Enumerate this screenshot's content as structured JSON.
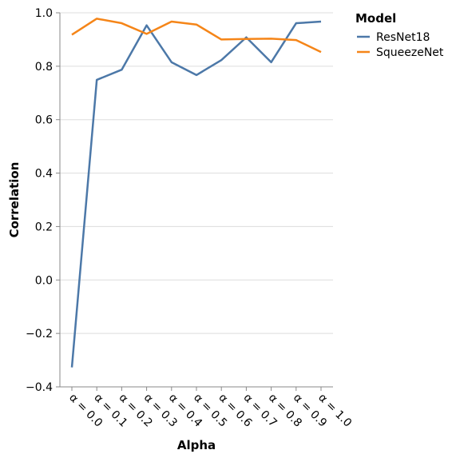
{
  "chart_data": {
    "type": "line",
    "xlabel": "Alpha",
    "ylabel": "Correlation",
    "categories": [
      "α = 0.0",
      "α = 0.1",
      "α = 0.2",
      "α = 0.3",
      "α = 0.4",
      "α = 0.5",
      "α = 0.6",
      "α = 0.7",
      "α = 0.8",
      "α = 0.9",
      "α = 1.0"
    ],
    "ylim": [
      -0.4,
      1.0
    ],
    "yticks": [
      "−0.4",
      "−0.2",
      "0.0",
      "0.2",
      "0.4",
      "0.6",
      "0.8",
      "1.0"
    ],
    "grid": "horizontal",
    "legend": {
      "title": "Model",
      "placement": "right"
    },
    "series": [
      {
        "name": "ResNet18",
        "color": "#4c78a8",
        "values": [
          -0.327,
          0.749,
          0.787,
          0.953,
          0.815,
          0.767,
          0.823,
          0.908,
          0.815,
          0.961,
          0.967
        ]
      },
      {
        "name": "SqueezeNet",
        "color": "#f58518",
        "values": [
          0.918,
          0.978,
          0.961,
          0.921,
          0.967,
          0.956,
          0.9,
          0.902,
          0.903,
          0.898,
          0.853
        ]
      }
    ]
  }
}
